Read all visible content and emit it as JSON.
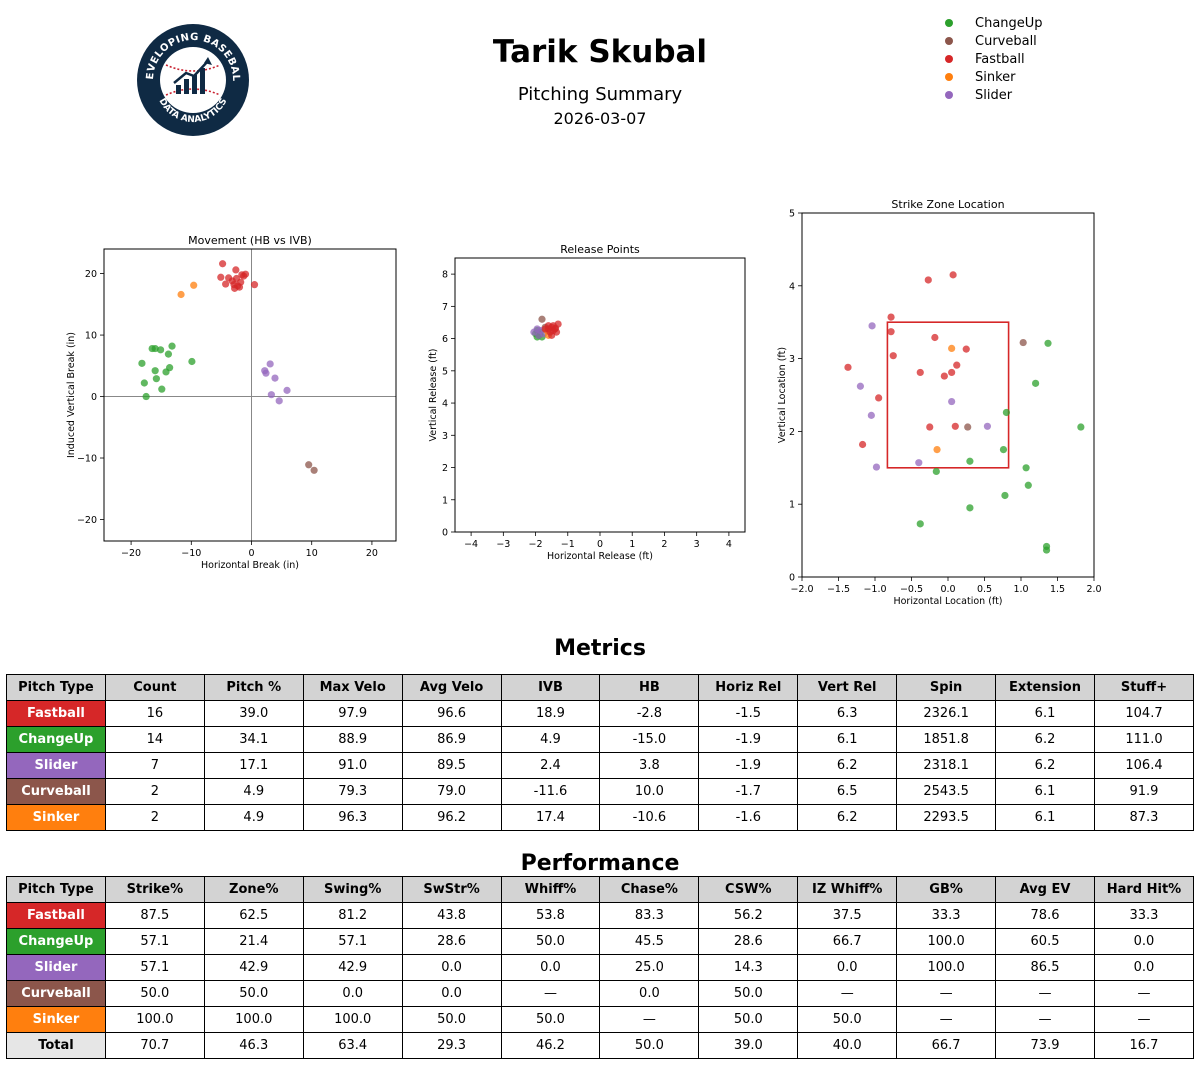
{
  "header": {
    "title": "Tarik Skubal",
    "subtitle": "Pitching Summary",
    "date": "2026-03-07",
    "logo": {
      "top_text": "DEVELOPING BASEBALL",
      "bottom_text": "DATA ANALYTICS"
    }
  },
  "pitch_colors": {
    "ChangeUp": "#2ca02c",
    "Curveball": "#8c564b",
    "Fastball": "#d62728",
    "Sinker": "#ff7f0e",
    "Slider": "#9467bd"
  },
  "legend": [
    "ChangeUp",
    "Curveball",
    "Fastball",
    "Sinker",
    "Slider"
  ],
  "chart_data": [
    {
      "type": "scatter",
      "title": "Movement (HB vs IVB)",
      "xlabel": "Horizontal Break (in)",
      "ylabel": "Induced Vertical Break (in)",
      "xlim": [
        -24.5,
        24
      ],
      "ylim": [
        -23.5,
        24
      ],
      "xticks": [
        -20,
        -10,
        0,
        10,
        20
      ],
      "yticks": [
        -20,
        -10,
        0,
        10,
        20
      ],
      "reference_lines": {
        "x": 0,
        "y": 0
      },
      "series": [
        {
          "name": "Fastball",
          "points": [
            [
              -5.1,
              19.4
            ],
            [
              -4.8,
              21.6
            ],
            [
              -4.3,
              18.3
            ],
            [
              -3.8,
              19.3
            ],
            [
              -3.2,
              18.8
            ],
            [
              -2.9,
              18.2
            ],
            [
              -2.8,
              17.6
            ],
            [
              -2.6,
              20.6
            ],
            [
              -2.5,
              19.2
            ],
            [
              -2.3,
              18.0
            ],
            [
              -2.0,
              17.8
            ],
            [
              -1.8,
              18.6
            ],
            [
              -1.6,
              19.8
            ],
            [
              -1.3,
              19.6
            ],
            [
              -1.0,
              19.9
            ],
            [
              0.5,
              18.2
            ]
          ]
        },
        {
          "name": "ChangeUp",
          "points": [
            [
              -18.2,
              5.4
            ],
            [
              -17.8,
              2.2
            ],
            [
              -17.5,
              0.0
            ],
            [
              -16.5,
              7.8
            ],
            [
              -16.0,
              7.8
            ],
            [
              -16.0,
              4.2
            ],
            [
              -15.8,
              2.9
            ],
            [
              -15.1,
              7.6
            ],
            [
              -14.9,
              1.2
            ],
            [
              -14.2,
              4.0
            ],
            [
              -13.8,
              6.9
            ],
            [
              -13.6,
              4.7
            ],
            [
              -13.2,
              8.2
            ],
            [
              -9.9,
              5.7
            ]
          ]
        },
        {
          "name": "Sinker",
          "points": [
            [
              -11.7,
              16.6
            ],
            [
              -9.6,
              18.1
            ]
          ]
        },
        {
          "name": "Slider",
          "points": [
            [
              2.2,
              4.2
            ],
            [
              2.4,
              3.8
            ],
            [
              3.1,
              5.3
            ],
            [
              3.3,
              0.3
            ],
            [
              3.9,
              3.0
            ],
            [
              4.6,
              -0.7
            ],
            [
              5.9,
              1.0
            ]
          ]
        },
        {
          "name": "Curveball",
          "points": [
            [
              9.5,
              -11.1
            ],
            [
              10.4,
              -12.0
            ]
          ]
        }
      ]
    },
    {
      "type": "scatter",
      "title": "Release Points",
      "xlabel": "Horizontal Release (ft)",
      "ylabel": "Vertical Release (ft)",
      "xlim": [
        -4.5,
        4.5
      ],
      "ylim": [
        0,
        8.5
      ],
      "xticks": [
        -4,
        -3,
        -2,
        -1,
        0,
        1,
        2,
        3,
        4
      ],
      "yticks": [
        0,
        1,
        2,
        3,
        4,
        5,
        6,
        7,
        8
      ],
      "series": [
        {
          "name": "ChangeUp",
          "points": [
            [
              -2.0,
              6.15
            ],
            [
              -1.95,
              6.05
            ],
            [
              -1.9,
              6.1
            ],
            [
              -1.85,
              6.2
            ],
            [
              -1.8,
              6.05
            ],
            [
              -1.95,
              6.25
            ],
            [
              -1.88,
              6.12
            ]
          ]
        },
        {
          "name": "Curveball",
          "points": [
            [
              -1.8,
              6.6
            ],
            [
              -1.7,
              6.35
            ]
          ]
        },
        {
          "name": "Slider",
          "points": [
            [
              -2.05,
              6.2
            ],
            [
              -1.95,
              6.3
            ],
            [
              -1.9,
              6.1
            ],
            [
              -1.85,
              6.25
            ],
            [
              -1.75,
              6.15
            ]
          ]
        },
        {
          "name": "Sinker",
          "points": [
            [
              -1.6,
              6.1
            ],
            [
              -1.65,
              6.25
            ]
          ]
        },
        {
          "name": "Fastball",
          "points": [
            [
              -1.7,
              6.3
            ],
            [
              -1.6,
              6.4
            ],
            [
              -1.55,
              6.2
            ],
            [
              -1.5,
              6.35
            ],
            [
              -1.45,
              6.25
            ],
            [
              -1.4,
              6.3
            ],
            [
              -1.35,
              6.2
            ],
            [
              -1.3,
              6.45
            ],
            [
              -1.5,
              6.1
            ],
            [
              -1.6,
              6.3
            ],
            [
              -1.45,
              6.4
            ],
            [
              -1.38,
              6.32
            ]
          ]
        }
      ]
    },
    {
      "type": "scatter",
      "title": "Strike Zone Location",
      "xlabel": "Horizontal Location (ft)",
      "ylabel": "Vertical Location (ft)",
      "xlim": [
        -2.0,
        2.0
      ],
      "ylim": [
        0,
        5
      ],
      "xticks": [
        -2.0,
        -1.5,
        -1.0,
        -0.5,
        0.0,
        0.5,
        1.0,
        1.5,
        2.0
      ],
      "yticks": [
        0,
        1,
        2,
        3,
        4,
        5
      ],
      "strike_zone": {
        "x": [
          -0.83,
          0.83
        ],
        "y": [
          1.5,
          3.5
        ],
        "color": "#d62728"
      },
      "series": [
        {
          "name": "Fastball",
          "points": [
            [
              -0.27,
              4.08
            ],
            [
              0.07,
              4.15
            ],
            [
              -0.78,
              3.57
            ],
            [
              -0.78,
              3.37
            ],
            [
              -1.37,
              2.88
            ],
            [
              -0.75,
              3.04
            ],
            [
              -0.95,
              2.46
            ],
            [
              -0.18,
              3.29
            ],
            [
              -0.38,
              2.81
            ],
            [
              0.05,
              2.81
            ],
            [
              0.12,
              2.91
            ],
            [
              -0.05,
              2.76
            ],
            [
              0.25,
              3.13
            ],
            [
              -0.25,
              2.06
            ],
            [
              0.1,
              2.07
            ],
            [
              -1.17,
              1.82
            ]
          ]
        },
        {
          "name": "ChangeUp",
          "points": [
            [
              1.37,
              3.21
            ],
            [
              1.2,
              2.66
            ],
            [
              0.8,
              2.26
            ],
            [
              1.82,
              2.06
            ],
            [
              0.76,
              1.75
            ],
            [
              1.07,
              1.5
            ],
            [
              1.1,
              1.26
            ],
            [
              0.78,
              1.12
            ],
            [
              0.3,
              0.95
            ],
            [
              0.3,
              1.59
            ],
            [
              -0.16,
              1.45
            ],
            [
              -0.38,
              0.73
            ],
            [
              1.35,
              0.42
            ],
            [
              1.35,
              0.37
            ]
          ]
        },
        {
          "name": "Slider",
          "points": [
            [
              -1.04,
              3.45
            ],
            [
              -1.2,
              2.62
            ],
            [
              -1.05,
              2.22
            ],
            [
              0.05,
              2.41
            ],
            [
              0.54,
              2.07
            ],
            [
              -0.98,
              1.51
            ],
            [
              -0.4,
              1.57
            ]
          ]
        },
        {
          "name": "Curveball",
          "points": [
            [
              1.03,
              3.22
            ],
            [
              0.27,
              2.06
            ]
          ]
        },
        {
          "name": "Sinker",
          "points": [
            [
              0.05,
              3.14
            ],
            [
              -0.15,
              1.75
            ]
          ]
        }
      ]
    }
  ],
  "metrics": {
    "title": "Metrics",
    "columns": [
      "Pitch Type",
      "Count",
      "Pitch %",
      "Max Velo",
      "Avg Velo",
      "IVB",
      "HB",
      "Horiz Rel",
      "Vert Rel",
      "Spin",
      "Extension",
      "Stuff+"
    ],
    "rows": [
      [
        "Fastball",
        "16",
        "39.0",
        "97.9",
        "96.6",
        "18.9",
        "-2.8",
        "-1.5",
        "6.3",
        "2326.1",
        "6.1",
        "104.7"
      ],
      [
        "ChangeUp",
        "14",
        "34.1",
        "88.9",
        "86.9",
        "4.9",
        "-15.0",
        "-1.9",
        "6.1",
        "1851.8",
        "6.2",
        "111.0"
      ],
      [
        "Slider",
        "7",
        "17.1",
        "91.0",
        "89.5",
        "2.4",
        "3.8",
        "-1.9",
        "6.2",
        "2318.1",
        "6.2",
        "106.4"
      ],
      [
        "Curveball",
        "2",
        "4.9",
        "79.3",
        "79.0",
        "-11.6",
        "10.0",
        "-1.7",
        "6.5",
        "2543.5",
        "6.1",
        "91.9"
      ],
      [
        "Sinker",
        "2",
        "4.9",
        "96.3",
        "96.2",
        "17.4",
        "-10.6",
        "-1.6",
        "6.2",
        "2293.5",
        "6.1",
        "87.3"
      ]
    ]
  },
  "performance": {
    "title": "Performance",
    "columns": [
      "Pitch Type",
      "Strike%",
      "Zone%",
      "Swing%",
      "SwStr%",
      "Whiff%",
      "Chase%",
      "CSW%",
      "IZ Whiff%",
      "GB%",
      "Avg EV",
      "Hard Hit%"
    ],
    "rows": [
      [
        "Fastball",
        "87.5",
        "62.5",
        "81.2",
        "43.8",
        "53.8",
        "83.3",
        "56.2",
        "37.5",
        "33.3",
        "78.6",
        "33.3"
      ],
      [
        "ChangeUp",
        "57.1",
        "21.4",
        "57.1",
        "28.6",
        "50.0",
        "45.5",
        "28.6",
        "66.7",
        "100.0",
        "60.5",
        "0.0"
      ],
      [
        "Slider",
        "57.1",
        "42.9",
        "42.9",
        "0.0",
        "0.0",
        "25.0",
        "14.3",
        "0.0",
        "100.0",
        "86.5",
        "0.0"
      ],
      [
        "Curveball",
        "50.0",
        "50.0",
        "0.0",
        "0.0",
        "—",
        "0.0",
        "50.0",
        "—",
        "—",
        "—",
        "—"
      ],
      [
        "Sinker",
        "100.0",
        "100.0",
        "100.0",
        "50.0",
        "50.0",
        "—",
        "50.0",
        "50.0",
        "—",
        "—",
        "—"
      ],
      [
        "Total",
        "70.7",
        "46.3",
        "63.4",
        "29.3",
        "46.2",
        "50.0",
        "39.0",
        "40.0",
        "66.7",
        "73.9",
        "16.7"
      ]
    ]
  }
}
